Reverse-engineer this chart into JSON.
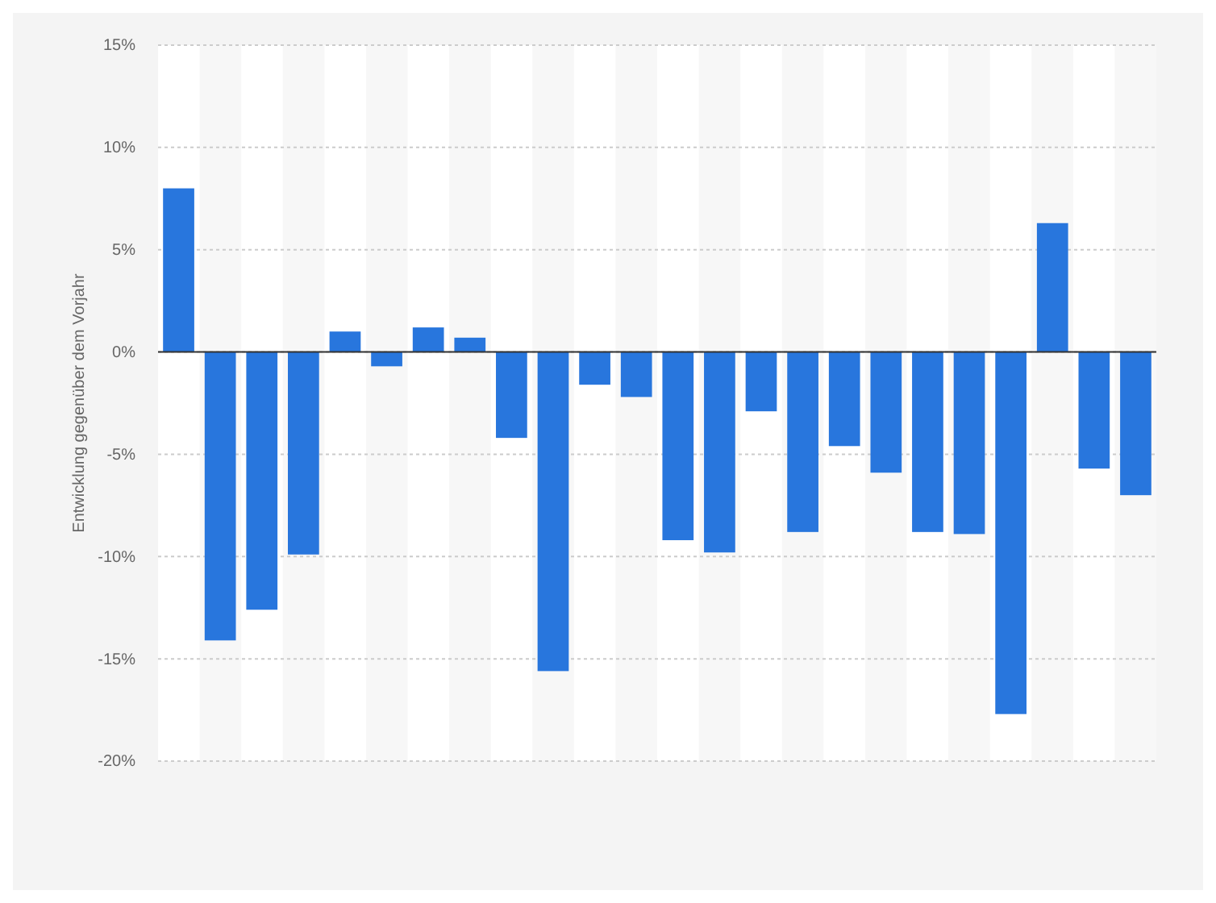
{
  "chart_data": {
    "type": "bar",
    "ylabel": "Entwicklung gegenüber dem Vorjahr",
    "categories": [
      null,
      null,
      null,
      null,
      null,
      null,
      null,
      null,
      null,
      null,
      null,
      null,
      null,
      null,
      null,
      null,
      null,
      null,
      null,
      null,
      null,
      null,
      null,
      null
    ],
    "values": [
      8.0,
      -14.1,
      -12.6,
      -9.9,
      1.0,
      -0.7,
      1.2,
      0.7,
      -4.2,
      -15.6,
      -1.6,
      -2.2,
      -9.2,
      -9.8,
      -2.9,
      -8.8,
      -4.6,
      -5.9,
      -8.8,
      -8.9,
      -17.7,
      6.3,
      -5.7,
      -7.0
    ],
    "color": "#2876dd",
    "ylim": [
      -20,
      15
    ],
    "yticks": [
      {
        "value": -20,
        "label": "-20%"
      },
      {
        "value": -15,
        "label": "-15%"
      },
      {
        "value": -10,
        "label": "-10%"
      },
      {
        "value": -5,
        "label": "-5%"
      },
      {
        "value": 0,
        "label": "0%"
      },
      {
        "value": 5,
        "label": "5%"
      },
      {
        "value": 10,
        "label": "10%"
      },
      {
        "value": 15,
        "label": "15%"
      }
    ],
    "grid": "y"
  }
}
